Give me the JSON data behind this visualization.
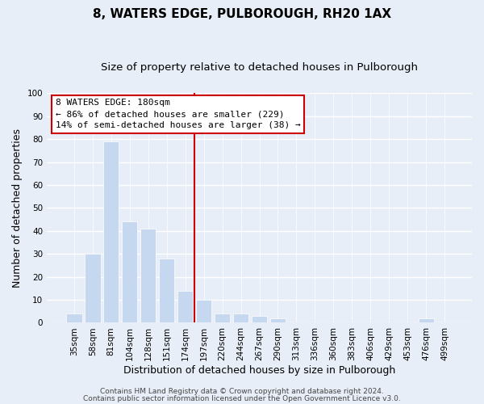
{
  "title": "8, WATERS EDGE, PULBOROUGH, RH20 1AX",
  "subtitle": "Size of property relative to detached houses in Pulborough",
  "xlabel": "Distribution of detached houses by size in Pulborough",
  "ylabel": "Number of detached properties",
  "footer_line1": "Contains HM Land Registry data © Crown copyright and database right 2024.",
  "footer_line2": "Contains public sector information licensed under the Open Government Licence v3.0.",
  "bar_labels": [
    "35sqm",
    "58sqm",
    "81sqm",
    "104sqm",
    "128sqm",
    "151sqm",
    "174sqm",
    "197sqm",
    "220sqm",
    "244sqm",
    "267sqm",
    "290sqm",
    "313sqm",
    "336sqm",
    "360sqm",
    "383sqm",
    "406sqm",
    "429sqm",
    "453sqm",
    "476sqm",
    "499sqm"
  ],
  "bar_values": [
    4,
    30,
    79,
    44,
    41,
    28,
    14,
    10,
    4,
    4,
    3,
    2,
    0,
    0,
    0,
    0,
    0,
    0,
    0,
    2,
    0
  ],
  "bar_color": "#c5d8f0",
  "bar_edgecolor": "white",
  "vline_x": 6.5,
  "vline_color": "#cc0000",
  "annotation_title": "8 WATERS EDGE: 180sqm",
  "annotation_line1": "← 86% of detached houses are smaller (229)",
  "annotation_line2": "14% of semi-detached houses are larger (38) →",
  "annotation_box_facecolor": "#ffffff",
  "annotation_box_edgecolor": "#cc0000",
  "ylim": [
    0,
    100
  ],
  "yticks": [
    0,
    10,
    20,
    30,
    40,
    50,
    60,
    70,
    80,
    90,
    100
  ],
  "background_color": "#e8eef7",
  "grid_color": "#c8d4e8",
  "title_fontsize": 11,
  "subtitle_fontsize": 9.5,
  "tick_fontsize": 7.5,
  "axis_label_fontsize": 9,
  "annotation_fontsize": 8,
  "footer_fontsize": 6.5
}
